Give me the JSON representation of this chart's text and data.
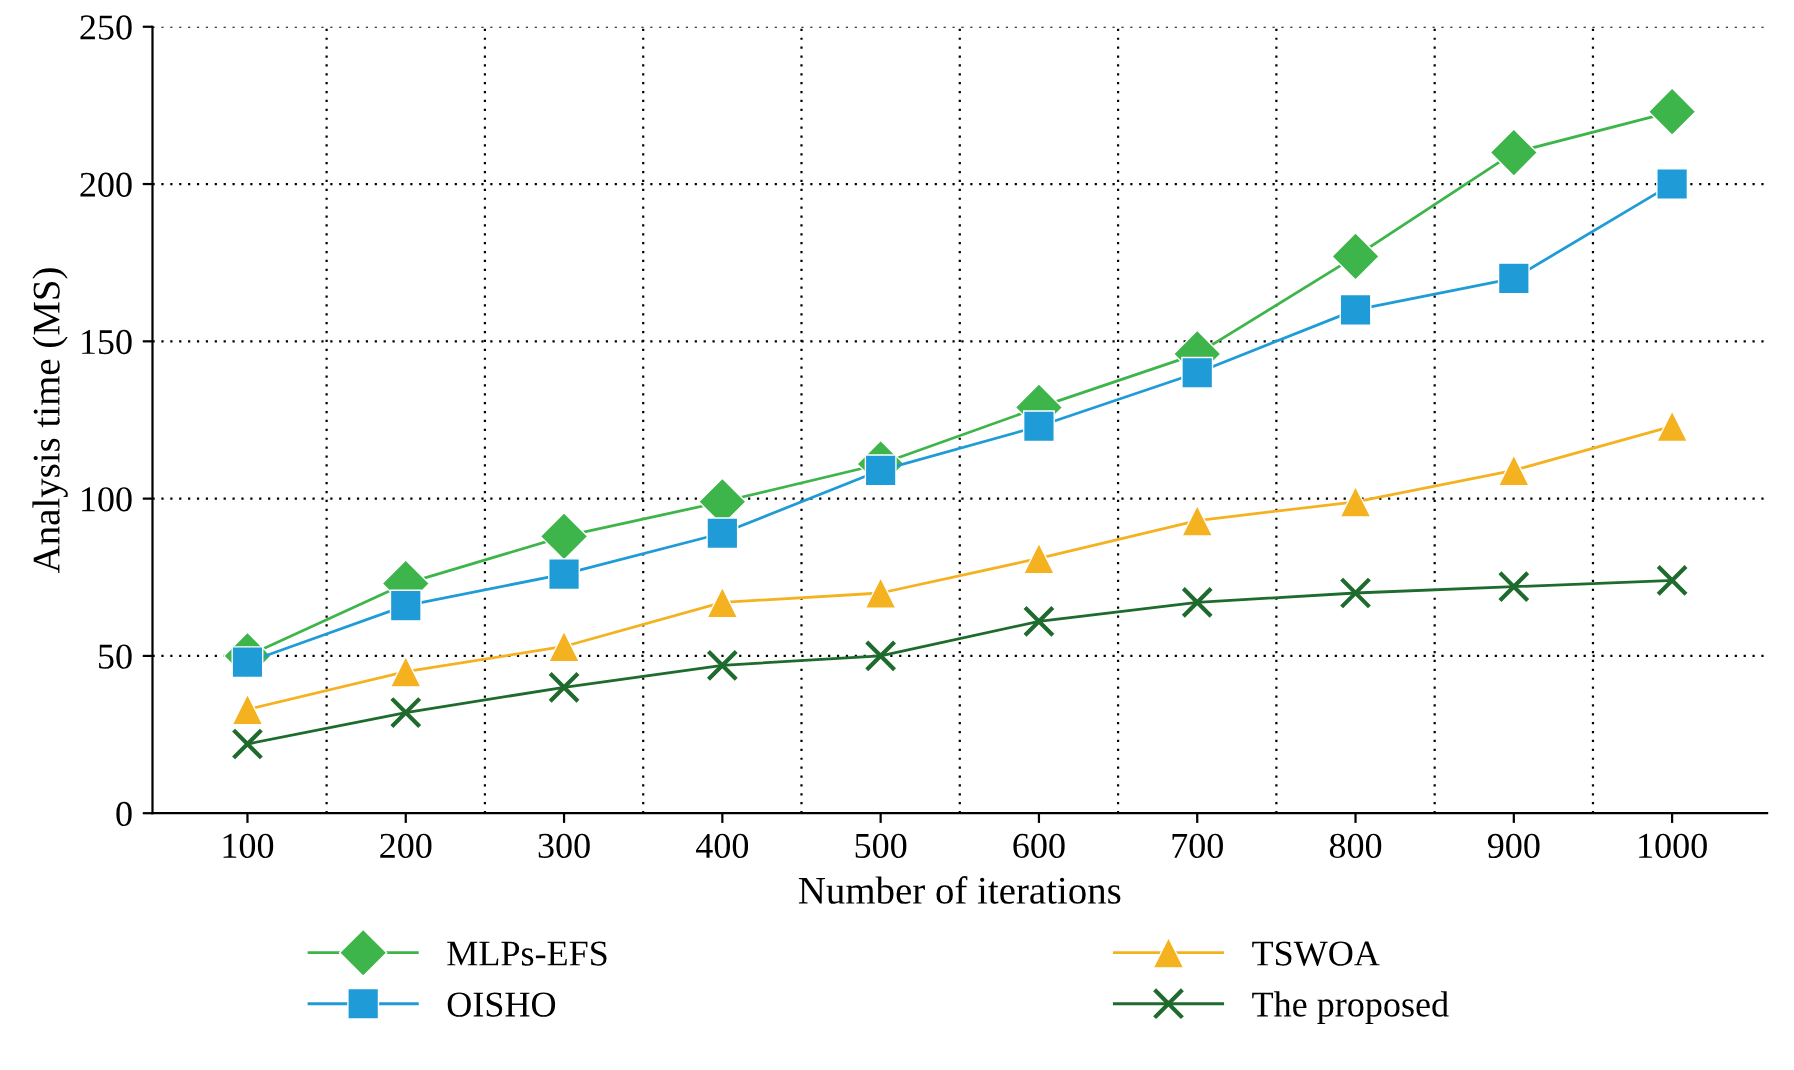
{
  "chart_data": {
    "type": "line",
    "xlabel": "Number of iterations",
    "ylabel": "Analysis time (MS)",
    "categories": [
      "100",
      "200",
      "300",
      "400",
      "500",
      "600",
      "700",
      "800",
      "900",
      "1000"
    ],
    "ylim": [
      0,
      250
    ],
    "yticks": [
      0,
      50,
      100,
      150,
      200,
      250
    ],
    "grid": true,
    "legend": "bottom",
    "line_style": "solid",
    "series": [
      {
        "name": "MLPs-EFS",
        "color": "#3db54a",
        "marker": "diamond",
        "values": [
          50,
          73,
          88,
          99,
          111,
          129,
          146,
          177,
          210,
          223
        ]
      },
      {
        "name": "OISHO",
        "color": "#1f9bd7",
        "marker": "square",
        "values": [
          48,
          66,
          76,
          89,
          109,
          123,
          140,
          160,
          170,
          200
        ]
      },
      {
        "name": "TSWOA",
        "color": "#f5b220",
        "marker": "triangle",
        "values": [
          33,
          45,
          53,
          67,
          70,
          81,
          93,
          99,
          109,
          123
        ]
      },
      {
        "name": "The proposed",
        "color": "#1e6b2d",
        "marker": "cross",
        "values": [
          22,
          32,
          40,
          47,
          50,
          61,
          67,
          70,
          72,
          74
        ]
      }
    ]
  }
}
